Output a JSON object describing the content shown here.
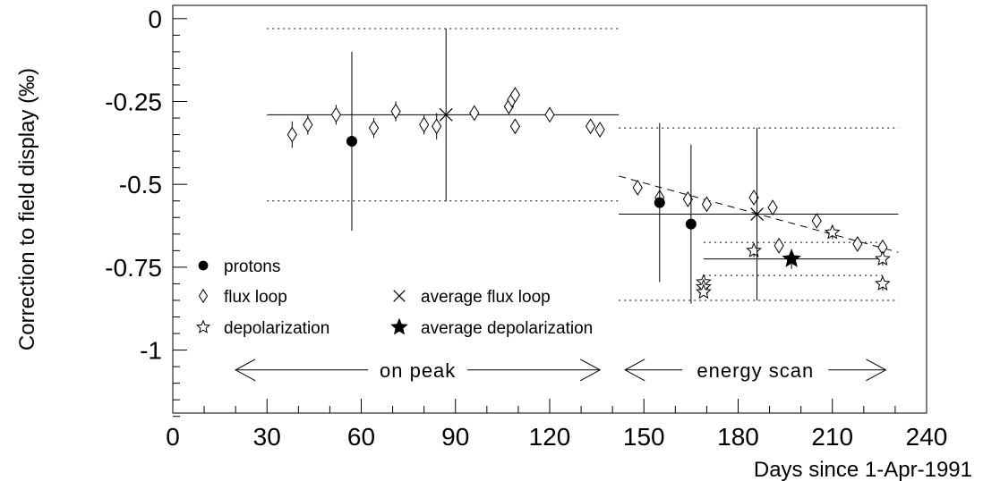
{
  "chart_data": {
    "type": "scatter",
    "xlabel": "Days since 1-Apr-1991",
    "ylabel": "Correction to field display (‰)",
    "xlim": [
      0,
      240
    ],
    "ylim": [
      -1.19,
      0.04
    ],
    "xticks": [
      0,
      30,
      60,
      90,
      120,
      150,
      180,
      210,
      240
    ],
    "yticks": [
      0,
      -0.25,
      -0.5,
      -0.75,
      -1
    ],
    "ytick_labels": [
      "0",
      "-0.25",
      "-0.5",
      "-0.75",
      "-1"
    ],
    "grid": false,
    "legend": {
      "placement": "bottom-left",
      "entries": [
        {
          "label": "protons",
          "marker": "filled-circle"
        },
        {
          "label": "flux loop",
          "marker": "open-diamond"
        },
        {
          "label": "depolarization",
          "marker": "open-star"
        },
        {
          "label": "average flux loop",
          "marker": "cross"
        },
        {
          "label": "average depolarization",
          "marker": "filled-star"
        }
      ]
    },
    "series": [
      {
        "name": "flux loop",
        "marker": "open-diamond",
        "points": [
          {
            "x": 38,
            "y": -0.35,
            "err": 0.04
          },
          {
            "x": 43,
            "y": -0.32,
            "err": 0.03
          },
          {
            "x": 52,
            "y": -0.29,
            "err": 0.03
          },
          {
            "x": 64,
            "y": -0.33,
            "err": 0.03
          },
          {
            "x": 71,
            "y": -0.28,
            "err": 0.03
          },
          {
            "x": 80,
            "y": -0.32,
            "err": 0.03
          },
          {
            "x": 84,
            "y": -0.325,
            "err": 0.04
          },
          {
            "x": 96,
            "y": -0.285,
            "err": 0.02
          },
          {
            "x": 107,
            "y": -0.265,
            "err": 0.02
          },
          {
            "x": 108,
            "y": -0.245,
            "err": 0.02
          },
          {
            "x": 109,
            "y": -0.23,
            "err": 0.02
          },
          {
            "x": 109,
            "y": -0.325,
            "err": 0.02
          },
          {
            "x": 120,
            "y": -0.29,
            "err": 0.02
          },
          {
            "x": 133,
            "y": -0.325,
            "err": 0.02
          },
          {
            "x": 136,
            "y": -0.335,
            "err": 0.02
          },
          {
            "x": 148,
            "y": -0.51,
            "err": 0.02
          },
          {
            "x": 155,
            "y": -0.54,
            "err": 0.02
          },
          {
            "x": 164,
            "y": -0.545,
            "err": 0.02
          },
          {
            "x": 170,
            "y": -0.56,
            "err": 0.02
          },
          {
            "x": 185,
            "y": -0.54,
            "err": 0.02
          },
          {
            "x": 191,
            "y": -0.57,
            "err": 0.02
          },
          {
            "x": 193,
            "y": -0.685,
            "err": 0.02
          },
          {
            "x": 205,
            "y": -0.61,
            "err": 0.02
          },
          {
            "x": 218,
            "y": -0.68,
            "err": 0.02
          },
          {
            "x": 226,
            "y": -0.69,
            "err": 0.02
          }
        ]
      },
      {
        "name": "protons",
        "marker": "filled-circle",
        "points": [
          {
            "x": 57,
            "y": -0.37,
            "err": 0.27
          },
          {
            "x": 155,
            "y": -0.555,
            "err": 0.24
          },
          {
            "x": 165,
            "y": -0.62,
            "err": 0.24
          }
        ]
      },
      {
        "name": "depolarization",
        "marker": "open-star",
        "points": [
          {
            "x": 169,
            "y": -0.795,
            "err": 0.01
          },
          {
            "x": 169,
            "y": -0.81,
            "err": 0.01
          },
          {
            "x": 169,
            "y": -0.825,
            "err": 0.01
          },
          {
            "x": 185,
            "y": -0.7,
            "err": 0.02
          },
          {
            "x": 210,
            "y": -0.645,
            "err": 0.02
          },
          {
            "x": 226,
            "y": -0.725,
            "err": 0.02
          },
          {
            "x": 226,
            "y": -0.8,
            "err": 0.02
          }
        ]
      },
      {
        "name": "average flux loop",
        "marker": "cross",
        "points": [
          {
            "x": 87,
            "y": -0.29,
            "err": 0.26,
            "xmin": 30,
            "xmax": 142,
            "band": 0.26
          },
          {
            "x": 186,
            "y": -0.59,
            "err": 0.26,
            "xmin": 142,
            "xmax": 231,
            "band": 0.26
          }
        ]
      },
      {
        "name": "average depolarization",
        "marker": "filled-star",
        "points": [
          {
            "x": 197,
            "y": -0.725,
            "err": 0.03,
            "xmin": 169,
            "xmax": 227,
            "band": 0.05
          }
        ]
      }
    ],
    "trend_line": {
      "style": "dashed",
      "x": [
        142,
        231
      ],
      "y": [
        -0.475,
        -0.705
      ]
    },
    "annotations": [
      {
        "text": "on peak",
        "x_from": 20,
        "x_to": 136,
        "y": -1.06
      },
      {
        "text": "energy scan",
        "x_from": 144,
        "x_to": 227,
        "y": -1.06
      }
    ]
  }
}
